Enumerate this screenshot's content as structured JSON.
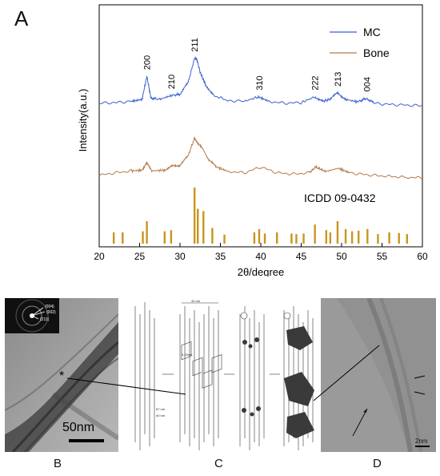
{
  "panels": {
    "a_label": "A",
    "b_label": "B",
    "c_label": "C",
    "d_label": "D"
  },
  "chart_data": {
    "type": "line",
    "xlabel": "2θ/degree",
    "ylabel": "Intensity(a.u.)",
    "xlim": [
      20,
      60
    ],
    "xticks": [
      20,
      25,
      30,
      35,
      40,
      45,
      50,
      55,
      60
    ],
    "series": [
      {
        "name": "MC",
        "color": "#3a5fd0",
        "x": [
          20,
          22,
          24,
          25.3,
          25.9,
          26.4,
          27.5,
          28.9,
          30,
          31,
          31.8,
          32.1,
          32.5,
          33.2,
          34.2,
          36,
          38,
          39.7,
          41,
          43,
          45,
          46.7,
          47.7,
          48.5,
          49.5,
          50.5,
          52,
          53.1,
          54,
          56,
          58,
          60
        ],
        "y": [
          0.3,
          0.31,
          0.33,
          0.36,
          0.72,
          0.38,
          0.36,
          0.42,
          0.44,
          0.62,
          1.0,
          0.98,
          0.78,
          0.58,
          0.42,
          0.34,
          0.33,
          0.4,
          0.33,
          0.3,
          0.31,
          0.4,
          0.33,
          0.36,
          0.46,
          0.36,
          0.32,
          0.38,
          0.3,
          0.28,
          0.27,
          0.26
        ]
      },
      {
        "name": "Bone",
        "color": "#b57a4a",
        "x": [
          20,
          22,
          24,
          25.3,
          25.9,
          26.5,
          28,
          29,
          30,
          31,
          31.8,
          32.2,
          32.8,
          33.5,
          34.5,
          36,
          38,
          40,
          42,
          44,
          46,
          46.8,
          48,
          49.6,
          51,
          53,
          55,
          58,
          60
        ],
        "y": [
          0.2,
          0.24,
          0.27,
          0.28,
          0.4,
          0.27,
          0.28,
          0.34,
          0.36,
          0.5,
          0.78,
          0.7,
          0.62,
          0.45,
          0.33,
          0.26,
          0.24,
          0.33,
          0.24,
          0.22,
          0.24,
          0.33,
          0.26,
          0.31,
          0.24,
          0.21,
          0.19,
          0.17,
          0.16
        ]
      }
    ],
    "peak_labels": [
      {
        "hkl": "200",
        "x": 25.9
      },
      {
        "hkl": "210",
        "x": 28.9
      },
      {
        "hkl": "211",
        "x": 31.8
      },
      {
        "hkl": "310",
        "x": 39.8
      },
      {
        "hkl": "222",
        "x": 46.7
      },
      {
        "hkl": "213",
        "x": 49.5
      },
      {
        "hkl": "004",
        "x": 53.1
      }
    ],
    "reference": {
      "name": "ICDD 09-0432",
      "color": "#c8961e",
      "x": [
        21.8,
        22.9,
        25.4,
        25.9,
        28.1,
        28.9,
        31.8,
        32.2,
        32.9,
        34.0,
        35.5,
        39.2,
        39.8,
        40.5,
        42.0,
        43.8,
        44.4,
        45.3,
        46.7,
        48.1,
        48.6,
        49.5,
        50.5,
        51.3,
        52.1,
        53.2,
        54.5,
        55.9,
        57.1,
        58.1
      ],
      "intensity": [
        0.2,
        0.2,
        0.22,
        0.4,
        0.22,
        0.24,
        1.0,
        0.62,
        0.58,
        0.28,
        0.16,
        0.2,
        0.26,
        0.18,
        0.2,
        0.18,
        0.17,
        0.18,
        0.34,
        0.24,
        0.2,
        0.4,
        0.26,
        0.22,
        0.23,
        0.26,
        0.17,
        0.2,
        0.19,
        0.17
      ]
    }
  },
  "panel_c": {
    "dimension_labels": [
      "42 nm",
      "0.24nm",
      "67 nm",
      "40 nm"
    ]
  },
  "panel_b": {
    "scalebar_label": "50nm",
    "saed_labels": [
      "(004)",
      "(002)",
      "(211)"
    ]
  },
  "panel_d": {
    "scalebar_label": "2nm"
  }
}
